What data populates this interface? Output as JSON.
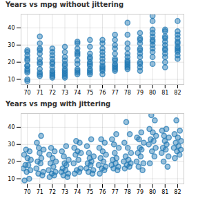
{
  "chart_data": [
    {
      "type": "scatter",
      "title": "Years vs mpg without jittering",
      "color": "#1f77b4",
      "marker": "circle",
      "grid": true,
      "xlim": [
        69.5,
        82.5
      ],
      "xticks": [
        70,
        71,
        72,
        73,
        74,
        75,
        76,
        77,
        78,
        79,
        80,
        81,
        82
      ],
      "ylim": [
        7,
        48
      ],
      "yticks": [
        10,
        20,
        30,
        40
      ],
      "x": [
        70,
        70,
        70,
        70,
        70,
        70,
        70,
        70,
        70,
        70,
        70,
        70,
        71,
        71,
        71,
        71,
        71,
        71,
        71,
        71,
        71,
        71,
        71,
        71,
        72,
        72,
        72,
        72,
        72,
        72,
        72,
        72,
        72,
        72,
        72,
        72,
        73,
        73,
        73,
        73,
        73,
        73,
        73,
        73,
        73,
        73,
        73,
        73,
        74,
        74,
        74,
        74,
        74,
        74,
        74,
        74,
        74,
        74,
        74,
        74,
        75,
        75,
        75,
        75,
        75,
        75,
        75,
        75,
        75,
        75,
        75,
        75,
        76,
        76,
        76,
        76,
        76,
        76,
        76,
        76,
        76,
        76,
        76,
        76,
        77,
        77,
        77,
        77,
        77,
        77,
        77,
        77,
        77,
        77,
        77,
        77,
        78,
        78,
        78,
        78,
        78,
        78,
        78,
        78,
        78,
        78,
        78,
        78,
        79,
        79,
        79,
        79,
        79,
        79,
        79,
        79,
        79,
        79,
        79,
        79,
        80,
        80,
        80,
        80,
        80,
        80,
        80,
        80,
        80,
        80,
        80,
        80,
        81,
        81,
        81,
        81,
        81,
        81,
        81,
        81,
        81,
        81,
        81,
        81,
        82,
        82,
        82,
        82,
        82,
        82,
        82,
        82,
        82,
        82,
        82,
        82
      ],
      "values": [
        9,
        10,
        14,
        15,
        16,
        18,
        18,
        21,
        22,
        24,
        26,
        27,
        12,
        13,
        14,
        16,
        19,
        20,
        22,
        25,
        27,
        28,
        31,
        35,
        11,
        12,
        13,
        14,
        15,
        17,
        19,
        20,
        22,
        24,
        26,
        28,
        11,
        12,
        13,
        14,
        15,
        16,
        18,
        19,
        21,
        23,
        26,
        29,
        13,
        14,
        15,
        16,
        19,
        21,
        24,
        25,
        26,
        28,
        31,
        32,
        13,
        14,
        15,
        16,
        18,
        19,
        20,
        22,
        23,
        25,
        29,
        33,
        13,
        15,
        16,
        17,
        18,
        20,
        22,
        24,
        26,
        28,
        31,
        33,
        15,
        16,
        17,
        18,
        19,
        21,
        22,
        25,
        28,
        30,
        33,
        36,
        16,
        17,
        18,
        19,
        20,
        21,
        23,
        25,
        28,
        31,
        36,
        43,
        15,
        17,
        19,
        20,
        23,
        25,
        27,
        28,
        31,
        33,
        34,
        37,
        19,
        23,
        26,
        28,
        30,
        32,
        33,
        35,
        37,
        39,
        44,
        47,
        17,
        20,
        23,
        25,
        27,
        28,
        30,
        32,
        34,
        35,
        38,
        39,
        22,
        24,
        26,
        27,
        28,
        29,
        31,
        32,
        34,
        36,
        38,
        44
      ]
    },
    {
      "type": "scatter",
      "title": "Years vs mpg with jittering",
      "color": "#1f77b4",
      "marker": "circle",
      "grid": true,
      "xlim": [
        69.5,
        82.5
      ],
      "xticks": [
        70,
        71,
        72,
        73,
        74,
        75,
        76,
        77,
        78,
        79,
        80,
        81,
        82
      ],
      "ylim": [
        7,
        48
      ],
      "yticks": [
        10,
        20,
        30,
        40
      ],
      "x": [
        69.78,
        70.15,
        69.95,
        70.25,
        69.7,
        70.08,
        69.85,
        70.28,
        70.02,
        69.75,
        70.18,
        69.9,
        71.2,
        70.88,
        71.27,
        70.72,
        71.05,
        70.82,
        71.12,
        70.98,
        71.3,
        70.92,
        70.76,
        71.1,
        71.78,
        72.15,
        71.95,
        72.25,
        71.7,
        72.08,
        71.85,
        72.28,
        72.02,
        71.75,
        72.18,
        71.9,
        73.2,
        72.88,
        73.27,
        72.72,
        73.05,
        72.82,
        73.12,
        72.98,
        73.3,
        72.92,
        72.76,
        73.1,
        73.78,
        74.15,
        73.95,
        74.25,
        73.7,
        74.08,
        73.85,
        74.28,
        74.02,
        73.75,
        74.18,
        73.9,
        75.2,
        74.88,
        75.27,
        74.72,
        75.05,
        74.82,
        75.12,
        74.98,
        75.3,
        74.92,
        74.76,
        75.1,
        75.78,
        76.15,
        75.95,
        76.25,
        75.7,
        76.08,
        75.85,
        76.28,
        76.02,
        75.75,
        76.18,
        75.9,
        77.2,
        76.88,
        77.27,
        76.72,
        77.05,
        76.82,
        77.12,
        76.98,
        77.3,
        76.92,
        76.76,
        77.1,
        77.78,
        78.15,
        77.95,
        78.25,
        77.7,
        78.08,
        77.85,
        78.28,
        78.02,
        77.75,
        78.18,
        77.9,
        79.2,
        78.88,
        79.27,
        78.72,
        79.05,
        78.82,
        79.12,
        78.98,
        79.3,
        78.92,
        78.76,
        79.1,
        79.78,
        80.15,
        79.95,
        80.25,
        79.7,
        80.08,
        79.85,
        80.28,
        80.02,
        79.75,
        80.18,
        79.9,
        81.2,
        80.88,
        81.27,
        80.72,
        81.05,
        80.82,
        81.12,
        80.98,
        81.3,
        80.92,
        80.76,
        81.1,
        81.78,
        82.15,
        81.95,
        82.25,
        81.7,
        82.08,
        81.85,
        82.28,
        82.02,
        81.75,
        82.18,
        81.9
      ],
      "values": [
        9,
        10,
        14,
        15,
        16,
        18,
        18,
        21,
        22,
        24,
        26,
        27,
        12,
        13,
        14,
        16,
        19,
        20,
        22,
        25,
        27,
        28,
        31,
        35,
        11,
        12,
        13,
        14,
        15,
        17,
        19,
        20,
        22,
        24,
        26,
        28,
        11,
        12,
        13,
        14,
        15,
        16,
        18,
        19,
        21,
        23,
        26,
        29,
        13,
        14,
        15,
        16,
        19,
        21,
        24,
        25,
        26,
        28,
        31,
        32,
        13,
        14,
        15,
        16,
        18,
        19,
        20,
        22,
        23,
        25,
        29,
        33,
        13,
        15,
        16,
        17,
        18,
        20,
        22,
        24,
        26,
        28,
        31,
        33,
        15,
        16,
        17,
        18,
        19,
        21,
        22,
        25,
        28,
        30,
        33,
        36,
        16,
        17,
        18,
        19,
        20,
        21,
        23,
        25,
        28,
        31,
        36,
        43,
        15,
        17,
        19,
        20,
        23,
        25,
        27,
        28,
        31,
        33,
        34,
        37,
        19,
        23,
        26,
        28,
        30,
        32,
        33,
        35,
        37,
        39,
        44,
        47,
        17,
        20,
        23,
        25,
        27,
        28,
        30,
        32,
        34,
        35,
        38,
        39,
        22,
        24,
        26,
        27,
        28,
        29,
        31,
        32,
        34,
        36,
        38,
        44
      ]
    }
  ]
}
